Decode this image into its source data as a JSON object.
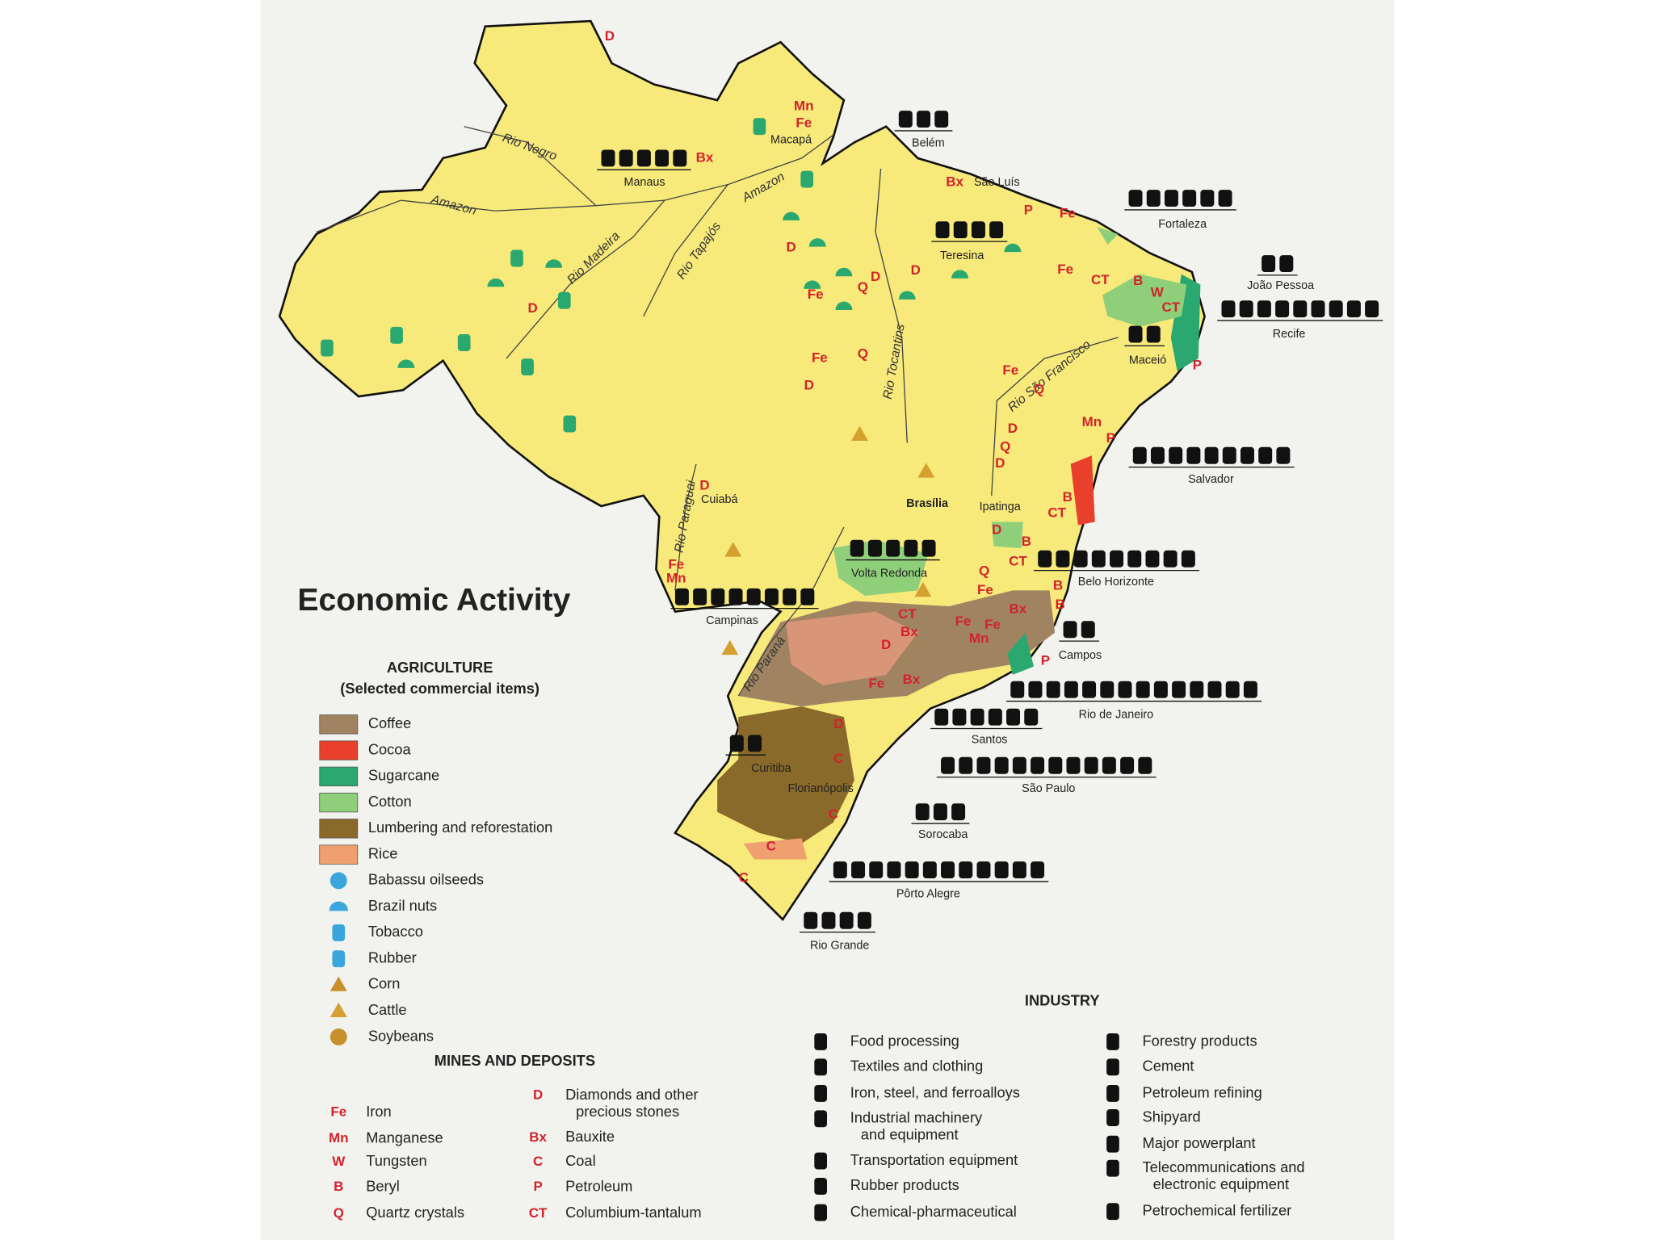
{
  "title": "Economic Activity",
  "agriculture": {
    "heading": "AGRICULTURE",
    "subheading": "(Selected commercial items)",
    "items": [
      "Coffee",
      "Cocoa",
      "Sugarcane",
      "Cotton",
      "Lumbering and reforestation",
      "Rice",
      "Babassu oilseeds",
      "Brazil nuts",
      "Tobacco",
      "Rubber",
      "Corn",
      "Cattle",
      "Soybeans"
    ]
  },
  "mines": {
    "heading": "MINES AND DEPOSITS",
    "items": [
      {
        "code": "Fe",
        "lines": [
          "Iron"
        ]
      },
      {
        "code": "Mn",
        "lines": [
          "Manganese"
        ]
      },
      {
        "code": "W",
        "lines": [
          "Tungsten"
        ]
      },
      {
        "code": "B",
        "lines": [
          "Beryl"
        ]
      },
      {
        "code": "Q",
        "lines": [
          "Quartz crystals"
        ]
      },
      {
        "code": "D",
        "lines": [
          "Diamonds and other",
          "precious stones"
        ]
      },
      {
        "code": "Bx",
        "lines": [
          "Bauxite"
        ]
      },
      {
        "code": "C",
        "lines": [
          "Coal"
        ]
      },
      {
        "code": "P",
        "lines": [
          "Petroleum"
        ]
      },
      {
        "code": "CT",
        "lines": [
          "Columbium-tantalum"
        ]
      }
    ]
  },
  "industry": {
    "heading": "INDUSTRY",
    "items": [
      [
        "Food processing"
      ],
      [
        "Textiles and clothing"
      ],
      [
        "Iron, steel, and ferroalloys"
      ],
      [
        "Industrial machinery",
        "and equipment"
      ],
      [
        "Transportation equipment"
      ],
      [
        "Rubber products"
      ],
      [
        "Chemical-pharmaceutical"
      ],
      [
        "Forestry products"
      ],
      [
        "Cement"
      ],
      [
        "Petroleum refining"
      ],
      [
        "Shipyard"
      ],
      [
        "Major powerplant"
      ],
      [
        "Telecommunications and",
        "electronic equipment"
      ],
      [
        "Petrochemical fertilizer"
      ]
    ]
  },
  "cities": [
    "Manaus",
    "Belém",
    "Macapá",
    "São Luís",
    "Fortaleza",
    "Teresina",
    "João Pessoa",
    "Recife",
    "Maceió",
    "Salvador",
    "Brasília",
    "Ipatinga",
    "Cuiabá",
    "Volta Redonda",
    "Belo Horizonte",
    "Campinas",
    "Campos",
    "Rio de Janeiro",
    "Santos",
    "São Paulo",
    "Curitiba",
    "Florianópolis",
    "Sorocaba",
    "Pôrto Alegre",
    "Rio Grande"
  ],
  "rivers": [
    "Rio Negro",
    "Amazon",
    "Amazon",
    "Rio Madeira",
    "Rio Tapajós",
    "Rio Tocantins",
    "Rio São Francisco",
    "Rio Paraguai",
    "Rio Paraná"
  ],
  "map_codes": [
    "D",
    "Mn",
    "Fe",
    "Bx",
    "Bx",
    "P",
    "Fe",
    "D",
    "D",
    "Q",
    "Fe",
    "D",
    "Fe",
    "Q",
    "D",
    "D",
    "Fe",
    "CT",
    "B",
    "W",
    "CT",
    "P",
    "Fe",
    "Q",
    "D",
    "Q",
    "D",
    "Mn",
    "P",
    "B",
    "CT",
    "D",
    "Fe",
    "Mn",
    "D",
    "B",
    "CT",
    "Q",
    "Fe",
    "Bx",
    "B",
    "B",
    "CT",
    "Fe",
    "Fe",
    "Mn",
    "Bx",
    "D",
    "P",
    "Fe",
    "Bx",
    "D",
    "C",
    "C",
    "C",
    "C"
  ]
}
